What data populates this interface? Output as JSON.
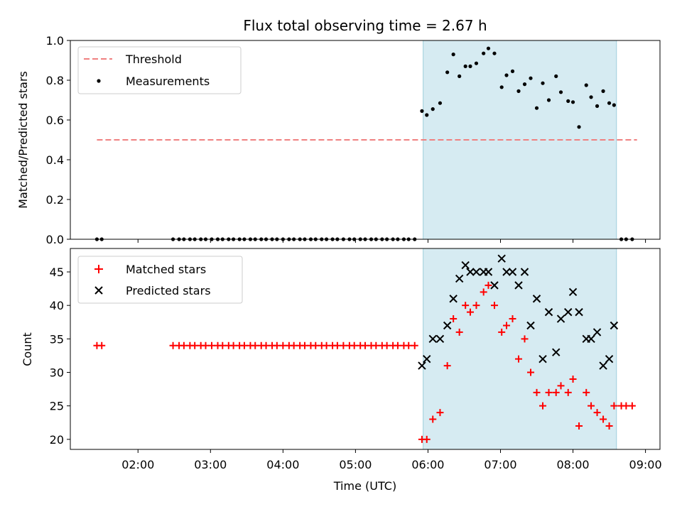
{
  "chart_data": {
    "title": "Flux total observing time = 2.67 h",
    "xlabel": "Time (UTC)",
    "x_ticks": [
      "02:00",
      "03:00",
      "04:00",
      "05:00",
      "06:00",
      "07:00",
      "08:00",
      "09:00"
    ],
    "x_range": [
      "01:04",
      "09:12"
    ],
    "observing_window": {
      "start": "05:56",
      "end": "08:36",
      "color": "#add8e6"
    },
    "panels": [
      {
        "type": "scatter",
        "ylabel": "Matched/Predicted stars",
        "ylim": [
          0,
          1
        ],
        "y_ticks": [
          "0.0",
          "0.2",
          "0.4",
          "0.6",
          "0.8",
          "1.0"
        ],
        "legend_position": "top-left",
        "threshold": {
          "name": "Threshold",
          "value": 0.5,
          "x_range": [
            "01:26",
            "08:53"
          ],
          "color": "#f08080"
        },
        "series": [
          {
            "name": "Measurements",
            "marker": "dot",
            "color": "#000000",
            "x": [
              "01:26",
              "01:30",
              "02:29",
              "02:34",
              "02:38",
              "02:43",
              "02:47",
              "02:52",
              "02:56",
              "03:01",
              "03:06",
              "03:10",
              "03:15",
              "03:19",
              "03:24",
              "03:28",
              "03:33",
              "03:37",
              "03:42",
              "03:46",
              "03:51",
              "03:55",
              "04:00",
              "04:05",
              "04:09",
              "04:14",
              "04:18",
              "04:23",
              "04:27",
              "04:32",
              "04:36",
              "04:41",
              "04:45",
              "04:50",
              "04:55",
              "04:59",
              "05:04",
              "05:08",
              "05:13",
              "05:17",
              "05:22",
              "05:26",
              "05:31",
              "05:35",
              "05:40",
              "05:44",
              "05:49",
              "05:55",
              "05:59",
              "06:04",
              "06:10",
              "06:16",
              "06:21",
              "06:26",
              "06:31",
              "06:35",
              "06:40",
              "06:46",
              "06:50",
              "06:55",
              "07:01",
              "07:05",
              "07:10",
              "07:15",
              "07:20",
              "07:25",
              "07:30",
              "07:35",
              "07:40",
              "07:46",
              "07:50",
              "07:56",
              "08:00",
              "08:05",
              "08:11",
              "08:15",
              "08:20",
              "08:25",
              "08:30",
              "08:34",
              "08:40",
              "08:44",
              "08:49"
            ],
            "y": [
              0,
              0,
              0,
              0,
              0,
              0,
              0,
              0,
              0,
              0,
              0,
              0,
              0,
              0,
              0,
              0,
              0,
              0,
              0,
              0,
              0,
              0,
              0,
              0,
              0,
              0,
              0,
              0,
              0,
              0,
              0,
              0,
              0,
              0,
              0,
              0,
              0,
              0,
              0,
              0,
              0,
              0,
              0,
              0,
              0,
              0,
              0,
              0.645,
              0.625,
              0.655,
              0.685,
              0.84,
              0.93,
              0.82,
              0.87,
              0.87,
              0.885,
              0.935,
              0.96,
              0.935,
              0.765,
              0.825,
              0.845,
              0.745,
              0.78,
              0.81,
              0.66,
              0.785,
              0.7,
              0.82,
              0.74,
              0.695,
              0.69,
              0.565,
              0.775,
              0.715,
              0.67,
              0.745,
              0.685,
              0.675,
              0,
              0,
              0
            ]
          }
        ]
      },
      {
        "type": "scatter",
        "ylabel": "Count",
        "ylim": [
          18.5,
          48.5
        ],
        "y_ticks": [
          "20",
          "25",
          "30",
          "35",
          "40",
          "45"
        ],
        "legend_position": "top-left",
        "series": [
          {
            "name": "Matched stars",
            "marker": "plus",
            "color": "#ff0000",
            "x": [
              "01:26",
              "01:30",
              "02:29",
              "02:34",
              "02:38",
              "02:43",
              "02:47",
              "02:52",
              "02:56",
              "03:01",
              "03:06",
              "03:10",
              "03:15",
              "03:19",
              "03:24",
              "03:28",
              "03:33",
              "03:37",
              "03:42",
              "03:46",
              "03:51",
              "03:55",
              "04:00",
              "04:05",
              "04:09",
              "04:14",
              "04:18",
              "04:23",
              "04:27",
              "04:32",
              "04:36",
              "04:41",
              "04:45",
              "04:50",
              "04:55",
              "04:59",
              "05:04",
              "05:08",
              "05:13",
              "05:17",
              "05:22",
              "05:26",
              "05:31",
              "05:35",
              "05:40",
              "05:44",
              "05:49",
              "05:55",
              "05:59",
              "06:04",
              "06:10",
              "06:16",
              "06:21",
              "06:26",
              "06:31",
              "06:35",
              "06:40",
              "06:46",
              "06:50",
              "06:55",
              "07:01",
              "07:05",
              "07:10",
              "07:15",
              "07:20",
              "07:25",
              "07:30",
              "07:35",
              "07:40",
              "07:46",
              "07:50",
              "07:56",
              "08:00",
              "08:05",
              "08:11",
              "08:15",
              "08:20",
              "08:25",
              "08:30",
              "08:34",
              "08:40",
              "08:44",
              "08:49"
            ],
            "y": [
              34,
              34,
              34,
              34,
              34,
              34,
              34,
              34,
              34,
              34,
              34,
              34,
              34,
              34,
              34,
              34,
              34,
              34,
              34,
              34,
              34,
              34,
              34,
              34,
              34,
              34,
              34,
              34,
              34,
              34,
              34,
              34,
              34,
              34,
              34,
              34,
              34,
              34,
              34,
              34,
              34,
              34,
              34,
              34,
              34,
              34,
              34,
              20,
              20,
              23,
              24,
              31,
              38,
              36,
              40,
              39,
              40,
              42,
              43,
              40,
              36,
              37,
              38,
              32,
              35,
              30,
              27,
              25,
              27,
              27,
              28,
              27,
              29,
              22,
              27,
              25,
              24,
              23,
              22,
              25,
              25,
              25,
              25
            ]
          },
          {
            "name": "Predicted stars",
            "marker": "x",
            "color": "#000000",
            "x": [
              "05:55",
              "05:59",
              "06:04",
              "06:10",
              "06:16",
              "06:21",
              "06:26",
              "06:31",
              "06:35",
              "06:40",
              "06:46",
              "06:50",
              "06:55",
              "07:01",
              "07:05",
              "07:10",
              "07:15",
              "07:20",
              "07:25",
              "07:30",
              "07:35",
              "07:40",
              "07:46",
              "07:50",
              "07:56",
              "08:00",
              "08:05",
              "08:11",
              "08:15",
              "08:20",
              "08:25",
              "08:30",
              "08:34"
            ],
            "y": [
              31,
              32,
              35,
              35,
              37,
              41,
              44,
              46,
              45,
              45,
              45,
              45,
              43,
              47,
              45,
              45,
              43,
              45,
              37,
              41,
              32,
              39,
              33,
              38,
              39,
              42,
              39,
              35,
              35,
              36,
              31,
              32,
              37
            ]
          }
        ]
      }
    ]
  }
}
